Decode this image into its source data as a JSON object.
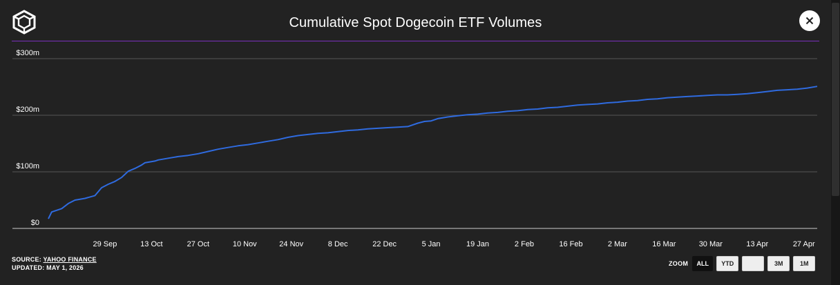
{
  "header": {
    "title": "Cumulative Spot Dogecoin ETF Volumes",
    "logo_icon": "the-block-cube-logo",
    "close_icon": "close-icon"
  },
  "colors": {
    "background": "#222222",
    "line": "#2f6be0",
    "divider": "#7b2fbf",
    "grid": "#555555"
  },
  "footer": {
    "source_prefix": "SOURCE:",
    "source_link": "YAHOO FINANCE",
    "updated": "UPDATED: MAY 1, 2026"
  },
  "zoom": {
    "label": "ZOOM",
    "buttons": [
      "ALL",
      "YTD",
      "",
      "3M",
      "1M"
    ],
    "selected": "ALL"
  },
  "chart_data": {
    "type": "line",
    "title": "Cumulative Spot Dogecoin ETF Volumes",
    "xlabel": "",
    "ylabel": "",
    "ylim": [
      0,
      300
    ],
    "y_unit": "m",
    "y_ticks": [
      "$0",
      "$100m",
      "$200m",
      "$300m"
    ],
    "x_ticks": [
      "29 Sep",
      "13 Oct",
      "27 Oct",
      "10 Nov",
      "24 Nov",
      "8 Dec",
      "22 Dec",
      "5 Jan",
      "19 Jan",
      "2 Feb",
      "16 Feb",
      "2 Mar",
      "16 Mar",
      "30 Mar",
      "13 Apr",
      "27 Apr"
    ],
    "x_tick_dates": [
      "2025-09-29",
      "2025-10-13",
      "2025-10-27",
      "2025-11-10",
      "2025-11-24",
      "2025-12-08",
      "2025-12-22",
      "2026-01-05",
      "2026-01-19",
      "2026-02-02",
      "2026-02-16",
      "2026-03-02",
      "2026-03-16",
      "2026-03-30",
      "2026-04-13",
      "2026-04-27"
    ],
    "x_range": [
      "2025-09-12",
      "2026-05-01"
    ],
    "grid": true,
    "legend": "none",
    "series": [
      {
        "x": [
          "2025-09-12",
          "2025-09-13",
          "2025-09-16",
          "2025-09-18",
          "2025-09-20",
          "2025-09-23",
          "2025-09-26",
          "2025-09-28",
          "2025-09-30",
          "2025-10-02",
          "2025-10-04",
          "2025-10-06",
          "2025-10-08",
          "2025-10-10",
          "2025-10-11",
          "2025-10-14",
          "2025-10-15",
          "2025-10-18",
          "2025-10-21",
          "2025-10-24",
          "2025-10-27",
          "2025-10-30",
          "2025-11-02",
          "2025-11-05",
          "2025-11-08",
          "2025-11-11",
          "2025-11-14",
          "2025-11-17",
          "2025-11-20",
          "2025-11-23",
          "2025-11-26",
          "2025-11-29",
          "2025-12-02",
          "2025-12-05",
          "2025-12-08",
          "2025-12-11",
          "2025-12-14",
          "2025-12-17",
          "2025-12-20",
          "2025-12-23",
          "2025-12-26",
          "2025-12-29",
          "2026-01-01",
          "2026-01-03",
          "2026-01-05",
          "2026-01-07",
          "2026-01-10",
          "2026-01-13",
          "2026-01-16",
          "2026-01-19",
          "2026-01-22",
          "2026-01-25",
          "2026-01-28",
          "2026-01-31",
          "2026-02-03",
          "2026-02-06",
          "2026-02-09",
          "2026-02-12",
          "2026-02-15",
          "2026-02-18",
          "2026-02-21",
          "2026-02-24",
          "2026-02-27",
          "2026-03-02",
          "2026-03-05",
          "2026-03-08",
          "2026-03-11",
          "2026-03-14",
          "2026-03-17",
          "2026-03-20",
          "2026-03-23",
          "2026-03-26",
          "2026-03-29",
          "2026-04-01",
          "2026-04-04",
          "2026-04-07",
          "2026-04-10",
          "2026-04-13",
          "2026-04-16",
          "2026-04-19",
          "2026-04-22",
          "2026-04-25",
          "2026-04-28",
          "2026-05-01"
        ],
        "values": [
          17,
          29,
          35,
          44,
          50,
          53,
          58,
          72,
          78,
          83,
          90,
          101,
          106,
          112,
          116,
          119,
          121,
          124,
          127,
          129,
          132,
          136,
          140,
          143,
          146,
          148,
          151,
          154,
          157,
          161,
          164,
          166,
          168,
          169,
          171,
          173,
          174,
          176,
          177,
          178,
          179,
          180,
          186,
          189,
          190,
          194,
          197,
          199,
          201,
          202,
          204,
          205,
          207,
          208,
          210,
          211,
          213,
          214,
          216,
          218,
          219,
          220,
          222,
          223,
          225,
          226,
          228,
          229,
          231,
          232,
          233,
          234,
          235,
          236,
          236,
          237,
          238,
          240,
          242,
          244,
          245,
          246,
          248,
          251
        ]
      }
    ]
  }
}
